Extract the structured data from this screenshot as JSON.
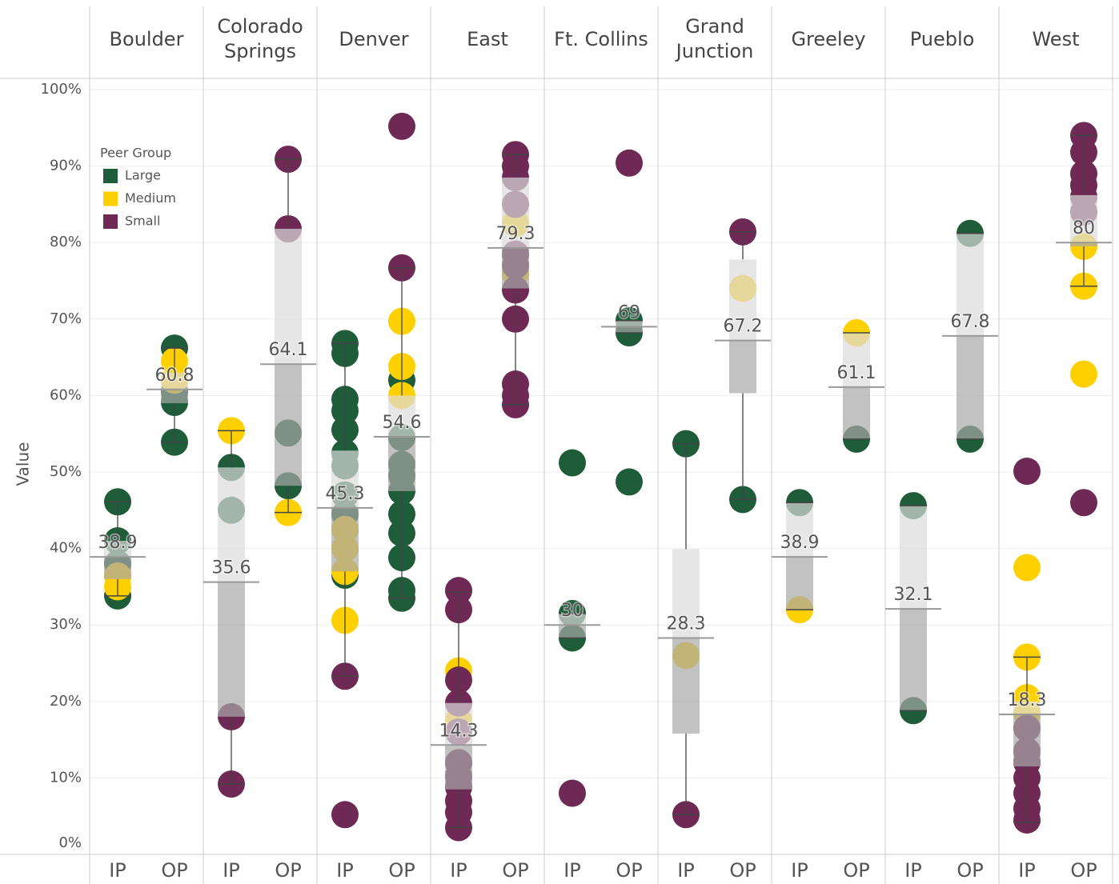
{
  "chart_data": {
    "type": "boxplot",
    "y_label": "Value",
    "legend_title": "Peer Group",
    "subgroups": [
      "IP",
      "OP"
    ],
    "groups": [
      {
        "name": "Large",
        "color": "#1e5c3a"
      },
      {
        "name": "Medium",
        "color": "#ffd000"
      },
      {
        "name": "Small",
        "color": "#6e2a55"
      }
    ],
    "ylim": [
      0,
      100
    ],
    "yticks": [
      {
        "value": 0,
        "label": "0%"
      },
      {
        "value": 10,
        "label": "10%"
      },
      {
        "value": 20,
        "label": "20%"
      },
      {
        "value": 30,
        "label": "30%"
      },
      {
        "value": 40,
        "label": "40%"
      },
      {
        "value": 50,
        "label": "50%"
      },
      {
        "value": 60,
        "label": "60%"
      },
      {
        "value": 70,
        "label": "70%"
      },
      {
        "value": 80,
        "label": "80%"
      },
      {
        "value": 90,
        "label": "90%"
      },
      {
        "value": 100,
        "label": "100%"
      }
    ],
    "grid": true,
    "panels": [
      {
        "name": "Boulder",
        "IP": {
          "median": 38.9,
          "q1": 36,
          "q3": 41,
          "low": 33.8,
          "high": 46.1,
          "Large": [
            46.1,
            41,
            38,
            33.8
          ],
          "Medium": [
            36.4,
            35
          ],
          "Small": []
        },
        "OP": {
          "median": 60.8,
          "q1": 59,
          "q3": 63,
          "low": 53.9,
          "high": 66.2,
          "Large": [
            66.2,
            60.5,
            59.1,
            53.9
          ],
          "Medium": [
            64.5,
            62
          ],
          "Small": []
        }
      },
      {
        "name": "Colorado Springs",
        "IP": {
          "median": 35.6,
          "q1": 18,
          "q3": 50.6,
          "low": 9.2,
          "high": 55.4,
          "Large": [
            50.6,
            45
          ],
          "Medium": [
            55.4
          ],
          "Small": [
            18,
            9.2
          ]
        },
        "OP": {
          "median": 64.1,
          "q1": 48.2,
          "q3": 81.8,
          "low": 44.7,
          "high": 90.9,
          "Large": [
            55.1,
            48.2
          ],
          "Medium": [
            44.7
          ],
          "Small": [
            90.9,
            81.8
          ]
        }
      },
      {
        "name": "Denver",
        "IP": {
          "median": 45.3,
          "q1": 37,
          "q3": 52.8,
          "low": 23.3,
          "high": 66.8,
          "Large": [
            66.8,
            65.5,
            59.5,
            58,
            55.5,
            52.5,
            50.8,
            47,
            44.5,
            36.5
          ],
          "Medium": [
            42.5,
            40,
            37,
            30.6
          ],
          "Small": [
            23.3,
            5.2
          ]
        },
        "OP": {
          "median": 54.6,
          "q1": 47.5,
          "q3": 60,
          "low": 33.5,
          "high": 76.7,
          "Large": [
            62,
            54.5,
            51,
            49.5,
            47.5,
            44.5,
            42,
            38.8,
            34.5,
            33.5
          ],
          "Medium": [
            69.7,
            63.8,
            60
          ],
          "Small": [
            95.2,
            76.7
          ]
        }
      },
      {
        "name": "East",
        "IP": {
          "median": 14.3,
          "q1": 8.5,
          "q3": 19.8,
          "low": 3.5,
          "high": 34.3,
          "Large": [],
          "Medium": [
            24,
            17.5
          ],
          "Small": [
            34.5,
            32,
            22.8,
            19.8,
            16,
            12,
            10.2,
            8.8,
            7,
            5.5,
            3.5
          ]
        },
        "OP": {
          "median": 79.3,
          "q1": 74,
          "q3": 88.5,
          "low": 58.8,
          "high": 91.5,
          "Large": [],
          "Medium": [
            82.5,
            76
          ],
          "Small": [
            91.5,
            90,
            88.5,
            85,
            78.5,
            77,
            73.8,
            70,
            61.5,
            60,
            58.8
          ]
        }
      },
      {
        "name": "Ft. Collins",
        "IP": {
          "median": 30.0,
          "q1": 28.3,
          "q3": 31.5,
          "low": 28.3,
          "high": 31.5,
          "Large": [
            51.2,
            31.5,
            28.3
          ],
          "Medium": [],
          "Small": [
            8
          ]
        },
        "OP": {
          "median": 69.0,
          "q1": 68.2,
          "q3": 69.8,
          "low": 68.2,
          "high": 69.8,
          "Large": [
            69.8,
            68.2,
            48.7
          ],
          "Medium": [],
          "Small": [
            90.4
          ]
        }
      },
      {
        "name": "Grand Junction",
        "IP": {
          "median": 28.3,
          "q1": 15.8,
          "q3": 39.9,
          "low": 5.2,
          "high": 53.7,
          "Large": [
            53.7
          ],
          "Medium": [
            26
          ],
          "Small": [
            5.2
          ]
        },
        "OP": {
          "median": 67.2,
          "q1": 60.3,
          "q3": 77.8,
          "low": 46.4,
          "high": 81.4,
          "Large": [
            46.4
          ],
          "Medium": [
            74
          ],
          "Small": [
            81.4
          ]
        }
      },
      {
        "name": "Greeley",
        "IP": {
          "median": 38.9,
          "q1": 32,
          "q3": 46,
          "low": 32,
          "high": 46,
          "Large": [
            46
          ],
          "Medium": [
            32
          ],
          "Small": []
        },
        "OP": {
          "median": 61.1,
          "q1": 54.3,
          "q3": 68.2,
          "low": 54.3,
          "high": 68.2,
          "Large": [
            54.3
          ],
          "Medium": [
            68.2
          ],
          "Small": []
        }
      },
      {
        "name": "Pueblo",
        "IP": {
          "median": 32.1,
          "q1": 18.8,
          "q3": 45.6,
          "low": 18.8,
          "high": 45.6,
          "Large": [
            45.6,
            18.8
          ],
          "Medium": [],
          "Small": []
        },
        "OP": {
          "median": 67.8,
          "q1": 54.3,
          "q3": 81.2,
          "low": 54.3,
          "high": 81.2,
          "Large": [
            81.2,
            54.3
          ],
          "Medium": [],
          "Small": []
        }
      },
      {
        "name": "West",
        "IP": {
          "median": 18.3,
          "q1": 11.5,
          "q3": 20,
          "low": 4.2,
          "high": 25.8,
          "Large": [],
          "Medium": [
            37.5,
            25.8,
            20.5,
            18.5
          ],
          "Small": [
            50.1,
            16.5,
            13.5,
            12,
            10,
            8,
            6,
            4.5
          ]
        },
        "OP": {
          "median": 80.0,
          "q1": 79.5,
          "q3": 86.2,
          "low": 74.3,
          "high": 94,
          "Large": [],
          "Medium": [
            79.5,
            74.3,
            62.8
          ],
          "Small": [
            94,
            91.8,
            89,
            87.5,
            86,
            84,
            46
          ]
        }
      }
    ]
  }
}
